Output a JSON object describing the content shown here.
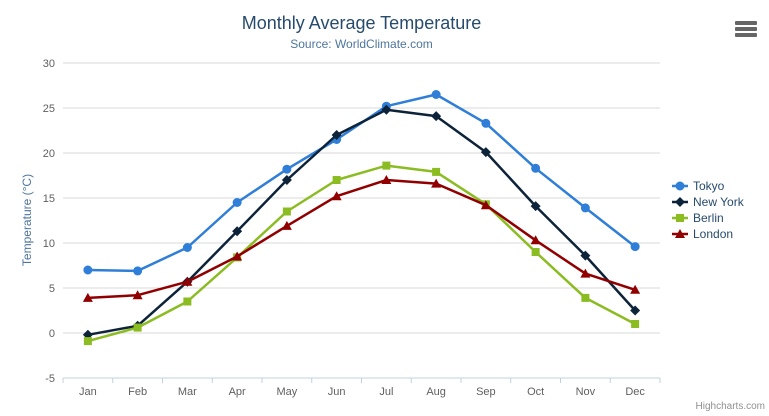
{
  "header": {
    "title": "Monthly Average Temperature",
    "subtitle": "Source: WorldClimate.com"
  },
  "y_axis": {
    "title": "Temperature (°C)"
  },
  "credits": {
    "label": "Highcharts.com"
  },
  "export_menu": {
    "icon": "hamburger-menu-icon"
  },
  "colors": {
    "title": "#274b6d",
    "subtitle": "#4d759e",
    "axis_labels": "#606060",
    "gridline": "#d8d8d8",
    "axis_line": "#c0d0e0",
    "credits": "#909090",
    "tokyo": "#2f7ed8",
    "new_york": "#0d233a",
    "berlin": "#8bbc21",
    "london": "#910000"
  },
  "chart_data": {
    "type": "line",
    "title": "Monthly Average Temperature",
    "subtitle": "Source: WorldClimate.com",
    "xlabel": "",
    "ylabel": "Temperature (°C)",
    "categories": [
      "Jan",
      "Feb",
      "Mar",
      "Apr",
      "May",
      "Jun",
      "Jul",
      "Aug",
      "Sep",
      "Oct",
      "Nov",
      "Dec"
    ],
    "series": [
      {
        "name": "Tokyo",
        "color": "#2f7ed8",
        "marker": "circle",
        "values": [
          7.0,
          6.9,
          9.5,
          14.5,
          18.2,
          21.5,
          25.2,
          26.5,
          23.3,
          18.3,
          13.9,
          9.6
        ]
      },
      {
        "name": "New York",
        "color": "#0d233a",
        "marker": "diamond",
        "values": [
          -0.2,
          0.8,
          5.7,
          11.3,
          17.0,
          22.0,
          24.8,
          24.1,
          20.1,
          14.1,
          8.6,
          2.5
        ]
      },
      {
        "name": "Berlin",
        "color": "#8bbc21",
        "marker": "square",
        "values": [
          -0.9,
          0.6,
          3.5,
          8.4,
          13.5,
          17.0,
          18.6,
          17.9,
          14.3,
          9.0,
          3.9,
          1.0
        ]
      },
      {
        "name": "London",
        "color": "#910000",
        "marker": "triangle",
        "values": [
          3.9,
          4.2,
          5.7,
          8.5,
          11.9,
          15.2,
          17.0,
          16.6,
          14.2,
          10.3,
          6.6,
          4.8
        ]
      }
    ],
    "ylim": [
      -5,
      30
    ],
    "y_tick_interval": 5,
    "grid": true,
    "legend_position": "right"
  }
}
